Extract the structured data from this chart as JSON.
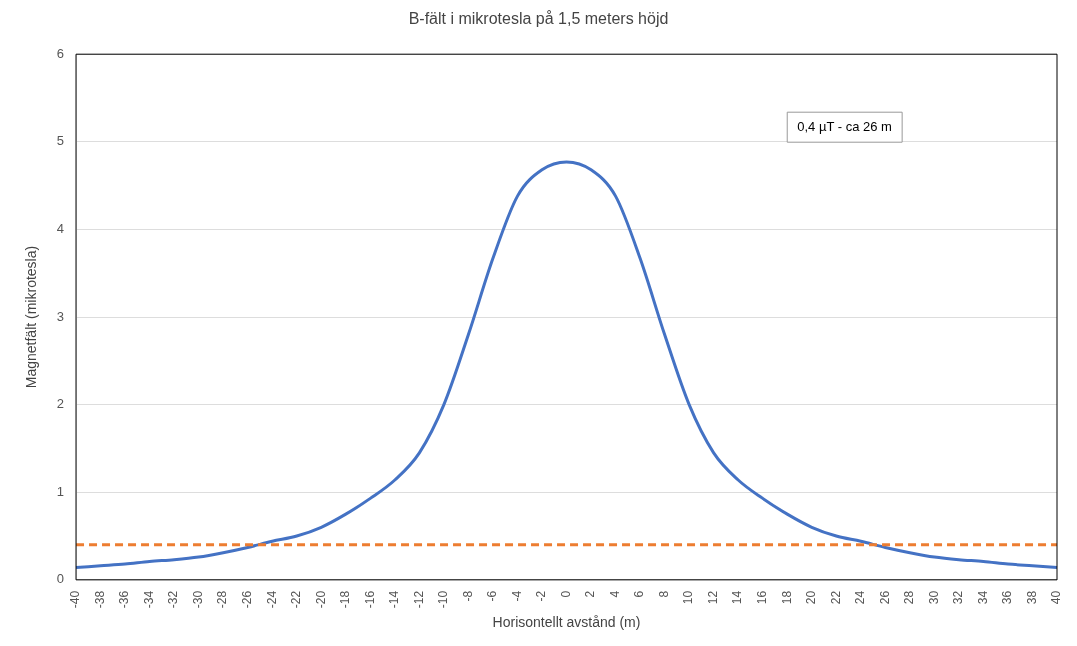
{
  "chart_data": {
    "type": "line",
    "title": "B-fält i mikrotesla på 1,5 meters höjd",
    "xlabel": "Horisontellt avstånd (m)",
    "ylabel": "Magnetfält (mikrotesla)",
    "categories": [
      "-40",
      "-38",
      "-36",
      "-34",
      "-32",
      "-30",
      "-28",
      "-26",
      "-24",
      "-22",
      "-20",
      "-18",
      "-16",
      "-14",
      "-12",
      "-10",
      "-8",
      "-6",
      "-4",
      "-2",
      "0",
      "2",
      "4",
      "6",
      "8",
      "10",
      "12",
      "14",
      "16",
      "18",
      "20",
      "22",
      "24",
      "26",
      "28",
      "30",
      "32",
      "34",
      "36",
      "38",
      "40"
    ],
    "series": [
      {
        "color": "#4472c4",
        "values": [
          0.14,
          0.16,
          0.18,
          0.21,
          0.23,
          0.26,
          0.31,
          0.37,
          0.44,
          0.5,
          0.6,
          0.75,
          0.93,
          1.14,
          1.45,
          2.0,
          2.8,
          3.67,
          4.38,
          4.68,
          4.77,
          4.68,
          4.38,
          3.67,
          2.8,
          2.0,
          1.45,
          1.14,
          0.93,
          0.75,
          0.6,
          0.5,
          0.44,
          0.37,
          0.31,
          0.26,
          0.23,
          0.21,
          0.18,
          0.16,
          0.14
        ]
      }
    ],
    "ylim": [
      0,
      6
    ],
    "yticks": [
      0,
      1,
      2,
      3,
      4,
      5,
      6
    ],
    "grid": "y",
    "legend": false,
    "marker": "none",
    "line_style": "solid",
    "ref_lines": [
      {
        "axis": "y",
        "value": 0.4,
        "color": "#ed7d31",
        "line_style": "dashed"
      }
    ],
    "annotations": [
      "0,4 µT - ca 26 m"
    ]
  }
}
